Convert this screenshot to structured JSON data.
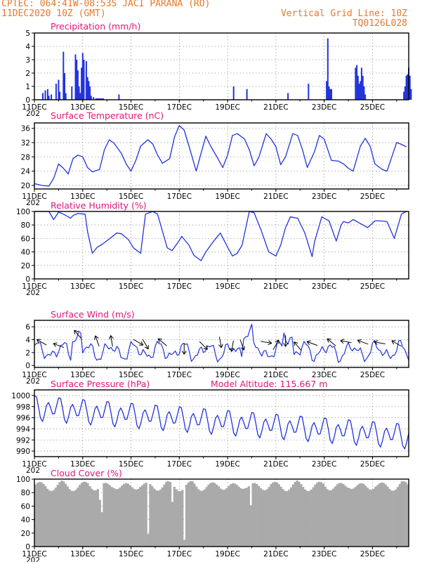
{
  "header": {
    "line1_left": "CPTEC:   064:41W-08:53S   JACI PARANA (RO)",
    "line2_left": "11DEC2020 10Z (GMT)",
    "line1_right": "Vertical Grid Line: 10Z",
    "line2_right": "TQ0126L028"
  },
  "colors": {
    "header": "#e8782a",
    "title": "#e0167b",
    "line": "#2233dd",
    "bar": "#2233dd",
    "cloud": "#aaaaaa",
    "arrow": "#000000"
  },
  "x_tick_labels": [
    "11DEC",
    "13DEC",
    "15DEC",
    "17DEC",
    "19DEC",
    "21DEC",
    "23DEC",
    "25DEC"
  ],
  "year_stub": "202",
  "panels": {
    "precip": {
      "title": "Precipitation (mm/h)",
      "yticks": [
        "0",
        "1",
        "2",
        "3",
        "4",
        "5"
      ]
    },
    "temp": {
      "title": "Surface Temperature (nC)",
      "yticks": [
        "20",
        "24",
        "28",
        "32",
        "36"
      ]
    },
    "rh": {
      "title": "Relative Humidity (%)",
      "yticks": [
        "0",
        "20",
        "40",
        "60",
        "80",
        "100"
      ]
    },
    "wind": {
      "title": "Surface Wind (m/s)",
      "yticks": [
        "0",
        "2",
        "4",
        "6"
      ]
    },
    "pres": {
      "title": "Surface Pressure (hPa)",
      "extra": "Model Altitude: 115.667 m",
      "yticks": [
        "990",
        "992",
        "994",
        "996",
        "998",
        "1000"
      ]
    },
    "cloud": {
      "title": "Cloud Cover (%)",
      "yticks": [
        "0",
        "20",
        "40",
        "60",
        "80",
        "100"
      ]
    }
  },
  "chart_data": [
    {
      "type": "bar",
      "title": "Precipitation (mm/h)",
      "ylim": [
        0,
        5
      ],
      "x_unit": "days since 11DEC 10Z",
      "x": [
        0.35,
        0.45,
        0.55,
        0.6,
        0.7,
        0.9,
        1.0,
        1.05,
        1.2,
        1.25,
        1.3,
        1.55,
        1.7,
        1.75,
        1.8,
        1.85,
        1.9,
        1.95,
        2.0,
        2.05,
        2.15,
        2.2,
        2.25,
        2.3,
        2.35,
        2.45,
        2.55,
        2.6,
        2.65,
        2.7,
        2.75,
        2.8,
        2.85,
        3.5,
        8.25,
        8.8,
        10.5,
        11.35,
        12.1,
        12.15,
        12.2,
        12.25,
        12.3,
        13.3,
        13.35,
        13.4,
        13.45,
        13.5,
        13.55,
        13.6,
        13.65,
        13.7,
        15.3,
        15.35,
        15.4,
        15.45,
        15.5,
        15.55,
        15.6
      ],
      "values": [
        0.5,
        0.7,
        0.8,
        0.3,
        0.4,
        1.2,
        1.5,
        0.6,
        3.6,
        2.0,
        0.5,
        1.0,
        3.4,
        3.0,
        2.2,
        1.0,
        0.5,
        2.4,
        3.5,
        3.0,
        2.9,
        1.7,
        1.4,
        1.0,
        0.3,
        0.2,
        0.1,
        0.1,
        0.1,
        0.1,
        0.1,
        0.1,
        0.1,
        0.4,
        1.0,
        0.8,
        0.5,
        1.2,
        1.4,
        4.6,
        1.0,
        0.8,
        0.8,
        2.4,
        2.6,
        1.8,
        1.2,
        1.4,
        2.4,
        1.8,
        1.0,
        0.4,
        0.6,
        1.0,
        1.8,
        1.9,
        2.4,
        1.8,
        0.8
      ]
    },
    {
      "type": "line",
      "title": "Surface Temperature (nC)",
      "ylim": [
        19,
        37.5
      ],
      "x": [
        0,
        0.3,
        0.6,
        0.8,
        1.0,
        1.2,
        1.4,
        1.6,
        1.8,
        2.0,
        2.2,
        2.4,
        2.7,
        2.9,
        3.1,
        3.3,
        3.6,
        3.8,
        4.0,
        4.2,
        4.4,
        4.7,
        4.9,
        5.1,
        5.3,
        5.6,
        5.8,
        6.0,
        6.2,
        6.4,
        6.7,
        6.9,
        7.1,
        7.3,
        7.6,
        7.8,
        8.0,
        8.2,
        8.4,
        8.7,
        8.9,
        9.1,
        9.3,
        9.6,
        9.8,
        10.0,
        10.2,
        10.4,
        10.7,
        10.9,
        11.1,
        11.3,
        11.6,
        11.8,
        12.0,
        12.3,
        12.6,
        12.8,
        13.0,
        13.2,
        13.5,
        13.7,
        13.9,
        14.1,
        14.4,
        14.6,
        14.8,
        15.0,
        15.2,
        15.4
      ],
      "values": [
        20.5,
        20.0,
        19.8,
        22.0,
        26.0,
        24.8,
        23.2,
        27.5,
        28.5,
        28.0,
        25.0,
        23.8,
        24.5,
        30.0,
        32.8,
        31.8,
        29.0,
        26.0,
        24.0,
        27.0,
        31.0,
        32.8,
        31.6,
        28.5,
        26.2,
        27.5,
        33.5,
        36.8,
        35.5,
        31.0,
        24.0,
        29.0,
        33.8,
        31.0,
        27.5,
        25.0,
        28.5,
        34.0,
        34.5,
        33.0,
        30.0,
        25.5,
        28.0,
        34.5,
        33.0,
        30.8,
        25.8,
        28.0,
        34.5,
        34.0,
        30.0,
        25.0,
        29.5,
        34.0,
        33.0,
        27.0,
        26.8,
        26.0,
        24.8,
        24.0,
        31.0,
        33.2,
        31.0,
        26.0,
        24.5,
        24.0,
        28.0,
        32.0,
        31.5,
        30.8
      ]
    },
    {
      "type": "line",
      "title": "Relative Humidity (%)",
      "ylim": [
        0,
        100
      ],
      "x": [
        0,
        0.6,
        0.8,
        1.0,
        1.2,
        1.5,
        1.6,
        1.8,
        2.1,
        2.2,
        2.4,
        2.6,
        2.8,
        3.2,
        3.4,
        3.6,
        3.9,
        4.1,
        4.4,
        4.6,
        4.9,
        5.1,
        5.5,
        5.7,
        6.0,
        6.1,
        6.4,
        6.6,
        6.9,
        7.1,
        7.4,
        7.7,
        8.0,
        8.2,
        8.4,
        8.6,
        8.9,
        9.1,
        9.4,
        9.7,
        10.0,
        10.2,
        10.4,
        10.6,
        10.9,
        11.2,
        11.5,
        11.6,
        11.9,
        12.2,
        12.5,
        12.7,
        12.8,
        13.0,
        13.2,
        13.6,
        13.8,
        14.1,
        14.3,
        14.6,
        14.9,
        15.2,
        15.4
      ],
      "values": [
        100,
        100,
        88,
        99,
        96,
        90,
        94,
        97,
        96,
        70,
        38,
        47,
        51,
        62,
        68,
        67,
        58,
        46,
        38,
        96,
        100,
        96,
        46,
        42,
        57,
        63,
        50,
        35,
        27,
        40,
        55,
        68,
        47,
        34,
        38,
        50,
        100,
        98,
        71,
        40,
        34,
        50,
        76,
        92,
        90,
        68,
        33,
        55,
        92,
        86,
        56,
        80,
        85,
        83,
        88,
        80,
        76,
        86,
        86,
        85,
        60,
        96,
        100
      ]
    }
  ]
}
